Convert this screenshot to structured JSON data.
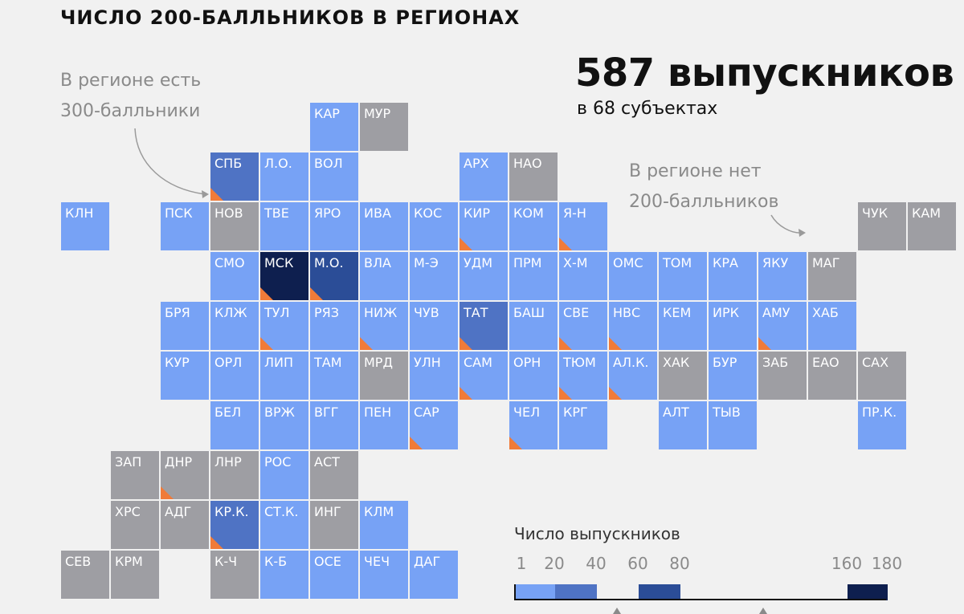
{
  "title": "ЧИСЛО 200-БАЛЛЬНИКОВ В РЕГИОНАХ",
  "summary": {
    "count_line": "587 выпускников",
    "subjects_line": "в 68 субъектах"
  },
  "annotations": {
    "has_300": [
      "В регионе есть",
      "300-балльники"
    ],
    "no_200": [
      "В регионе нет",
      "200-балльников"
    ]
  },
  "colors": {
    "none": "#9e9ea3",
    "bin_1_20": "#77a2f5",
    "bin_20_40": "#4f73c4",
    "bin_60_80": "#2b4d97",
    "bin_160_180": "#0e1f4f",
    "has_300_marker": "#f07b39"
  },
  "legend": {
    "title": "Число выпускников",
    "ticks": [
      "1",
      "20",
      "40",
      "60",
      "80",
      "160",
      "180"
    ],
    "tick_values": [
      1,
      20,
      40,
      60,
      80,
      160,
      180
    ],
    "bins": [
      {
        "from": 1,
        "to": 20,
        "color": "#77a2f5"
      },
      {
        "from": 20,
        "to": 40,
        "color": "#4f73c4"
      },
      {
        "from": 60,
        "to": 80,
        "color": "#2b4d97"
      },
      {
        "from": 160,
        "to": 180,
        "color": "#0e1f4f"
      }
    ]
  },
  "regions": [
    {
      "label": "КАР",
      "row": 0,
      "col": 5,
      "bin": "bin_1_20",
      "has300": false
    },
    {
      "label": "МУР",
      "row": 0,
      "col": 6,
      "bin": "none",
      "has300": false
    },
    {
      "label": "СПБ",
      "row": 1,
      "col": 3,
      "bin": "bin_20_40",
      "has300": true
    },
    {
      "label": "Л.О.",
      "row": 1,
      "col": 4,
      "bin": "bin_1_20",
      "has300": false
    },
    {
      "label": "ВОЛ",
      "row": 1,
      "col": 5,
      "bin": "bin_1_20",
      "has300": false
    },
    {
      "label": "АРХ",
      "row": 1,
      "col": 8,
      "bin": "bin_1_20",
      "has300": false
    },
    {
      "label": "НАО",
      "row": 1,
      "col": 9,
      "bin": "none",
      "has300": false
    },
    {
      "label": "КЛН",
      "row": 2,
      "col": 0,
      "bin": "bin_1_20",
      "has300": false
    },
    {
      "label": "ПСК",
      "row": 2,
      "col": 2,
      "bin": "bin_1_20",
      "has300": false
    },
    {
      "label": "НОВ",
      "row": 2,
      "col": 3,
      "bin": "none",
      "has300": false
    },
    {
      "label": "ТВЕ",
      "row": 2,
      "col": 4,
      "bin": "bin_1_20",
      "has300": false
    },
    {
      "label": "ЯРО",
      "row": 2,
      "col": 5,
      "bin": "bin_1_20",
      "has300": false
    },
    {
      "label": "ИВА",
      "row": 2,
      "col": 6,
      "bin": "bin_1_20",
      "has300": false
    },
    {
      "label": "КОС",
      "row": 2,
      "col": 7,
      "bin": "bin_1_20",
      "has300": false
    },
    {
      "label": "КИР",
      "row": 2,
      "col": 8,
      "bin": "bin_1_20",
      "has300": true
    },
    {
      "label": "КОМ",
      "row": 2,
      "col": 9,
      "bin": "bin_1_20",
      "has300": false
    },
    {
      "label": "Я-Н",
      "row": 2,
      "col": 10,
      "bin": "bin_1_20",
      "has300": true
    },
    {
      "label": "ЧУК",
      "row": 2,
      "col": 16,
      "bin": "none",
      "has300": false
    },
    {
      "label": "КАМ",
      "row": 2,
      "col": 17,
      "bin": "none",
      "has300": false
    },
    {
      "label": "СМО",
      "row": 3,
      "col": 3,
      "bin": "bin_1_20",
      "has300": false
    },
    {
      "label": "МСК",
      "row": 3,
      "col": 4,
      "bin": "bin_160_180",
      "has300": true
    },
    {
      "label": "М.О.",
      "row": 3,
      "col": 5,
      "bin": "bin_60_80",
      "has300": true
    },
    {
      "label": "ВЛА",
      "row": 3,
      "col": 6,
      "bin": "bin_1_20",
      "has300": false
    },
    {
      "label": "М-Э",
      "row": 3,
      "col": 7,
      "bin": "bin_1_20",
      "has300": false
    },
    {
      "label": "УДМ",
      "row": 3,
      "col": 8,
      "bin": "bin_1_20",
      "has300": false
    },
    {
      "label": "ПРМ",
      "row": 3,
      "col": 9,
      "bin": "bin_1_20",
      "has300": false
    },
    {
      "label": "Х-М",
      "row": 3,
      "col": 10,
      "bin": "bin_1_20",
      "has300": false
    },
    {
      "label": "ОМС",
      "row": 3,
      "col": 11,
      "bin": "bin_1_20",
      "has300": false
    },
    {
      "label": "ТОМ",
      "row": 3,
      "col": 12,
      "bin": "bin_1_20",
      "has300": false
    },
    {
      "label": "КРА",
      "row": 3,
      "col": 13,
      "bin": "bin_1_20",
      "has300": false
    },
    {
      "label": "ЯКУ",
      "row": 3,
      "col": 14,
      "bin": "bin_1_20",
      "has300": false
    },
    {
      "label": "МАГ",
      "row": 3,
      "col": 15,
      "bin": "none",
      "has300": false
    },
    {
      "label": "БРЯ",
      "row": 4,
      "col": 2,
      "bin": "bin_1_20",
      "has300": false
    },
    {
      "label": "КЛЖ",
      "row": 4,
      "col": 3,
      "bin": "bin_1_20",
      "has300": false
    },
    {
      "label": "ТУЛ",
      "row": 4,
      "col": 4,
      "bin": "bin_1_20",
      "has300": true
    },
    {
      "label": "РЯЗ",
      "row": 4,
      "col": 5,
      "bin": "bin_1_20",
      "has300": false
    },
    {
      "label": "НИЖ",
      "row": 4,
      "col": 6,
      "bin": "bin_1_20",
      "has300": true
    },
    {
      "label": "ЧУВ",
      "row": 4,
      "col": 7,
      "bin": "bin_1_20",
      "has300": false
    },
    {
      "label": "ТАТ",
      "row": 4,
      "col": 8,
      "bin": "bin_20_40",
      "has300": true
    },
    {
      "label": "БАШ",
      "row": 4,
      "col": 9,
      "bin": "bin_1_20",
      "has300": false
    },
    {
      "label": "СВЕ",
      "row": 4,
      "col": 10,
      "bin": "bin_1_20",
      "has300": true
    },
    {
      "label": "НВС",
      "row": 4,
      "col": 11,
      "bin": "bin_1_20",
      "has300": true
    },
    {
      "label": "КЕМ",
      "row": 4,
      "col": 12,
      "bin": "bin_1_20",
      "has300": false
    },
    {
      "label": "ИРК",
      "row": 4,
      "col": 13,
      "bin": "bin_1_20",
      "has300": false
    },
    {
      "label": "АМУ",
      "row": 4,
      "col": 14,
      "bin": "bin_1_20",
      "has300": true
    },
    {
      "label": "ХАБ",
      "row": 4,
      "col": 15,
      "bin": "bin_1_20",
      "has300": false
    },
    {
      "label": "КУР",
      "row": 5,
      "col": 2,
      "bin": "bin_1_20",
      "has300": false
    },
    {
      "label": "ОРЛ",
      "row": 5,
      "col": 3,
      "bin": "bin_1_20",
      "has300": false
    },
    {
      "label": "ЛИП",
      "row": 5,
      "col": 4,
      "bin": "bin_1_20",
      "has300": false
    },
    {
      "label": "ТАМ",
      "row": 5,
      "col": 5,
      "bin": "bin_1_20",
      "has300": false
    },
    {
      "label": "МРД",
      "row": 5,
      "col": 6,
      "bin": "none",
      "has300": false
    },
    {
      "label": "УЛН",
      "row": 5,
      "col": 7,
      "bin": "bin_1_20",
      "has300": false
    },
    {
      "label": "САМ",
      "row": 5,
      "col": 8,
      "bin": "bin_1_20",
      "has300": true
    },
    {
      "label": "ОРН",
      "row": 5,
      "col": 9,
      "bin": "bin_1_20",
      "has300": false
    },
    {
      "label": "ТЮМ",
      "row": 5,
      "col": 10,
      "bin": "bin_1_20",
      "has300": true
    },
    {
      "label": "АЛ.К.",
      "row": 5,
      "col": 11,
      "bin": "bin_1_20",
      "has300": true
    },
    {
      "label": "ХАК",
      "row": 5,
      "col": 12,
      "bin": "none",
      "has300": false
    },
    {
      "label": "БУР",
      "row": 5,
      "col": 13,
      "bin": "bin_1_20",
      "has300": false
    },
    {
      "label": "ЗАБ",
      "row": 5,
      "col": 14,
      "bin": "none",
      "has300": false
    },
    {
      "label": "ЕАО",
      "row": 5,
      "col": 15,
      "bin": "none",
      "has300": false
    },
    {
      "label": "САХ",
      "row": 5,
      "col": 16,
      "bin": "none",
      "has300": false
    },
    {
      "label": "БЕЛ",
      "row": 6,
      "col": 3,
      "bin": "bin_1_20",
      "has300": false
    },
    {
      "label": "ВРЖ",
      "row": 6,
      "col": 4,
      "bin": "bin_1_20",
      "has300": false
    },
    {
      "label": "ВГГ",
      "row": 6,
      "col": 5,
      "bin": "bin_1_20",
      "has300": false
    },
    {
      "label": "ПЕН",
      "row": 6,
      "col": 6,
      "bin": "bin_1_20",
      "has300": false
    },
    {
      "label": "САР",
      "row": 6,
      "col": 7,
      "bin": "bin_1_20",
      "has300": true
    },
    {
      "label": "ЧЕЛ",
      "row": 6,
      "col": 9,
      "bin": "bin_1_20",
      "has300": true
    },
    {
      "label": "КРГ",
      "row": 6,
      "col": 10,
      "bin": "bin_1_20",
      "has300": false
    },
    {
      "label": "АЛТ",
      "row": 6,
      "col": 12,
      "bin": "bin_1_20",
      "has300": false
    },
    {
      "label": "ТЫВ",
      "row": 6,
      "col": 13,
      "bin": "bin_1_20",
      "has300": false
    },
    {
      "label": "ПР.К.",
      "row": 6,
      "col": 16,
      "bin": "bin_1_20",
      "has300": false
    },
    {
      "label": "ЗАП",
      "row": 7,
      "col": 1,
      "bin": "none",
      "has300": false
    },
    {
      "label": "ДНР",
      "row": 7,
      "col": 2,
      "bin": "none",
      "has300": true
    },
    {
      "label": "ЛНР",
      "row": 7,
      "col": 3,
      "bin": "none",
      "has300": false
    },
    {
      "label": "РОС",
      "row": 7,
      "col": 4,
      "bin": "bin_1_20",
      "has300": false
    },
    {
      "label": "АСТ",
      "row": 7,
      "col": 5,
      "bin": "none",
      "has300": false
    },
    {
      "label": "ХРС",
      "row": 8,
      "col": 1,
      "bin": "none",
      "has300": false
    },
    {
      "label": "АДГ",
      "row": 8,
      "col": 2,
      "bin": "none",
      "has300": false
    },
    {
      "label": "КР.К.",
      "row": 8,
      "col": 3,
      "bin": "bin_20_40",
      "has300": true
    },
    {
      "label": "СТ.К.",
      "row": 8,
      "col": 4,
      "bin": "bin_1_20",
      "has300": false
    },
    {
      "label": "ИНГ",
      "row": 8,
      "col": 5,
      "bin": "none",
      "has300": false
    },
    {
      "label": "КЛМ",
      "row": 8,
      "col": 6,
      "bin": "bin_1_20",
      "has300": false
    },
    {
      "label": "СЕВ",
      "row": 9,
      "col": 0,
      "bin": "none",
      "has300": false
    },
    {
      "label": "КРМ",
      "row": 9,
      "col": 1,
      "bin": "none",
      "has300": false
    },
    {
      "label": "К-Ч",
      "row": 9,
      "col": 3,
      "bin": "none",
      "has300": false
    },
    {
      "label": "К-Б",
      "row": 9,
      "col": 4,
      "bin": "bin_1_20",
      "has300": false
    },
    {
      "label": "ОСЕ",
      "row": 9,
      "col": 5,
      "bin": "bin_1_20",
      "has300": false
    },
    {
      "label": "ЧЕЧ",
      "row": 9,
      "col": 6,
      "bin": "bin_1_20",
      "has300": false
    },
    {
      "label": "ДАГ",
      "row": 9,
      "col": 7,
      "bin": "bin_1_20",
      "has300": false
    }
  ]
}
